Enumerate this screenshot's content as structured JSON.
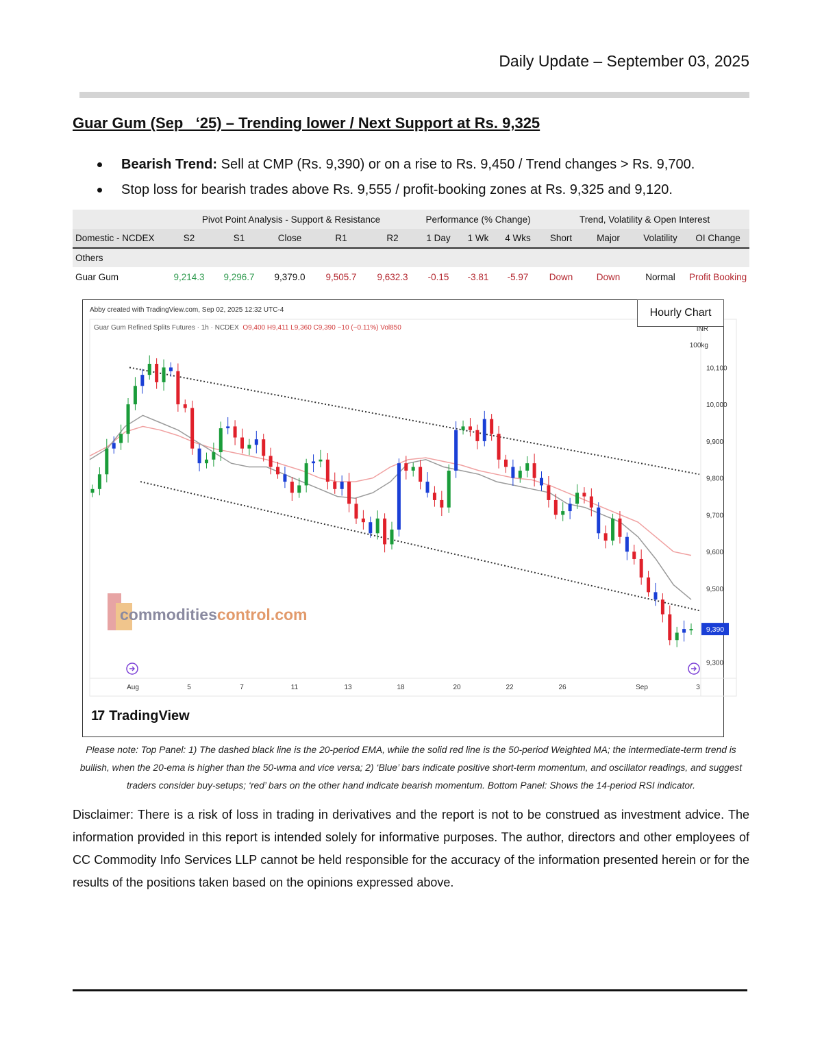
{
  "header": {
    "date": "Daily Update – September 03, 2025"
  },
  "headline": "Guar Gum (Sep   ‘25) – Trending lower / Next Support at Rs. 9,325",
  "bullets": {
    "b1_bold": "Bearish Trend:",
    "b1_text": " Sell at CMP (Rs. 9,390) or on a rise to Rs. 9,450 / Trend changes > Rs. 9,700.",
    "b2_text": "Stop loss for bearish trades above Rs. 9,555 / profit-booking zones at Rs. 9,325 and 9,120."
  },
  "table": {
    "groups": {
      "pivot": "Pivot Point Analysis - Support & Resistance",
      "performance": "Performance (% Change)",
      "trend": "Trend, Volatility & Open Interest"
    },
    "columns": [
      "Domestic - NCDEX",
      "S2",
      "S1",
      "Close",
      "R1",
      "R2",
      "1 Day",
      "1 Wk",
      "4 Wks",
      "Short",
      "Major",
      "Volatility",
      "OI Change"
    ],
    "section": "Others",
    "row": [
      "Guar Gum",
      "9,214.3",
      "9,296.7",
      "9,379.0",
      "9,505.7",
      "9,632.3",
      "-0.15",
      "-3.81",
      "-5.97",
      "Down",
      "Down",
      "Normal",
      "Profit Booking"
    ]
  },
  "chart_box": {
    "hourly_label": "Hourly Chart",
    "credit": "Abby created with TradingView.com, Sep 02, 2025 12:32 UTC-4",
    "symbol": "Guar Gum Refined Splits Futures · 1h · NCDEX",
    "ohlc": "O9,400  H9,411  L9,360  C9,390  −10 (−0.11%)  Vol850",
    "unit_1": "INR",
    "unit_2": "100kg",
    "logo_mark": "17",
    "logo_text": "TradingView",
    "watermark_1": "commodities",
    "watermark_2": "control.com"
  },
  "chart_data": {
    "type": "candlestick",
    "x_ticks": [
      "Aug",
      "5",
      "7",
      "11",
      "13",
      "18",
      "20",
      "22",
      "26",
      "Sep",
      "3"
    ],
    "y_ticks": [
      10100,
      10000,
      9900,
      9800,
      9700,
      9600,
      9500,
      9300
    ],
    "ylim": [
      9260,
      10190
    ],
    "last_price_label": "9,390",
    "last_price": 9390,
    "colors": {
      "up": "#1a9c3a",
      "down": "#e0202a",
      "blue": "#1a3fd6",
      "ema20": "#9a9a9a",
      "wma50": "#f0a0a0",
      "channel": "#333333"
    },
    "close_series": [
      9770,
      9810,
      9880,
      9895,
      9920,
      10000,
      10050,
      10080,
      10110,
      10060,
      10100,
      10090,
      10000,
      9990,
      9880,
      9840,
      9850,
      9870,
      9935,
      9940,
      9910,
      9880,
      9890,
      9905,
      9860,
      9830,
      9810,
      9790,
      9760,
      9780,
      9840,
      9845,
      9850,
      9790,
      9770,
      9790,
      9730,
      9690,
      9680,
      9650,
      9690,
      9620,
      9660,
      9840,
      9820,
      9830,
      9790,
      9760,
      9740,
      9720,
      9820,
      9930,
      9940,
      9930,
      9900,
      9960,
      9920,
      9850,
      9830,
      9800,
      9820,
      9840,
      9800,
      9780,
      9740,
      9700,
      9710,
      9730,
      9760,
      9750,
      9720,
      9650,
      9630,
      9690,
      9640,
      9600,
      9580,
      9530,
      9490,
      9470,
      9430,
      9360,
      9380,
      9390,
      9390
    ],
    "ema20_approx": [
      9850,
      9880,
      9940,
      9970,
      9950,
      9930,
      9900,
      9870,
      9840,
      9830,
      9830,
      9810,
      9790,
      9770,
      9750,
      9745,
      9760,
      9790,
      9840,
      9850,
      9830,
      9820,
      9810,
      9790,
      9780,
      9770,
      9760,
      9730,
      9720,
      9700,
      9680,
      9640,
      9580,
      9510,
      9470
    ],
    "wma50_approx": [
      9860,
      9885,
      9925,
      9940,
      9930,
      9915,
      9895,
      9880,
      9870,
      9860,
      9850,
      9835,
      9820,
      9800,
      9790,
      9790,
      9800,
      9830,
      9850,
      9855,
      9845,
      9835,
      9820,
      9810,
      9800,
      9795,
      9780,
      9760,
      9740,
      9720,
      9700,
      9680,
      9640,
      9600,
      9590
    ],
    "upper_channel": [
      10100,
      9810
    ],
    "lower_channel": [
      9790,
      9440
    ]
  },
  "note": "Please note: Top Panel: 1) The dashed black line is the 20-period EMA, while the solid red line is the 50-period Weighted MA; the intermediate-term trend is bullish, when the 20-ema is higher than the 50-wma and vice versa; 2)   ‘Blue’   bars indicate positive short-term momentum, and oscillator readings, and suggest traders consider buy-setups;   ‘red’   bars on the other hand indicate bearish momentum. Bottom Panel: Shows the 14-period RSI indicator.",
  "disclaimer": "Disclaimer: There is a risk of loss in trading in derivatives and the report is not to be construed as investment advice. The information provided in this report is intended solely for informative purposes. The author, directors and other employees of CC Commodity Info Services LLP cannot be held responsible for the accuracy of the information presented herein or for the results of the positions taken based on the opinions expressed above."
}
